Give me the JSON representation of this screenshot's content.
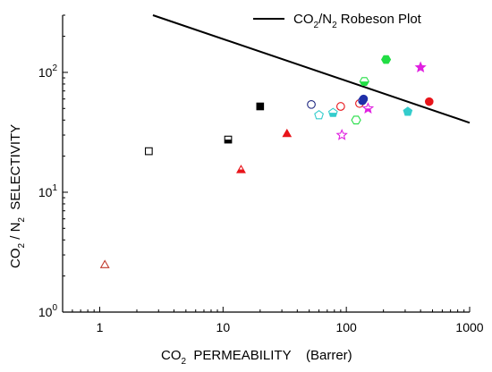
{
  "chart_data": {
    "type": "scatter",
    "title": "",
    "x_scale": "log",
    "y_scale": "log",
    "xlim": [
      0.5,
      1000
    ],
    "ylim": [
      1,
      300
    ],
    "grid": false,
    "xlabel": {
      "main": "CO",
      "sub": "2",
      "rest": "  PERMEABILITY    (Barrer)"
    },
    "ylabel": {
      "p1": "CO",
      "s1": "2",
      "p2": " / N",
      "s2": "2",
      "p3": "  SELECTIVITY"
    },
    "x_ticks": [
      {
        "value": 1,
        "label": "1"
      },
      {
        "value": 10,
        "label": "10"
      },
      {
        "value": 100,
        "label": "100"
      },
      {
        "value": 1000,
        "label": "1000"
      }
    ],
    "y_ticks": [
      {
        "value": 1,
        "base": "10",
        "exp": "0"
      },
      {
        "value": 10,
        "base": "10",
        "exp": "1"
      },
      {
        "value": 100,
        "base": "10",
        "exp": "2"
      }
    ],
    "legend": {
      "position": "top-right",
      "entry": {
        "t1": "CO",
        "s1": "2",
        "t2": "/N",
        "s2": "2",
        "t3": " Robeson Plot"
      }
    },
    "upper_bound": {
      "x": [
        2.7,
        1000
      ],
      "y": [
        300,
        38
      ]
    },
    "colors": {
      "black": "#000000",
      "red": "#e8141a",
      "darkred": "#c0392b",
      "cyan": "#33cccc",
      "green": "#22dd44",
      "blue": "#1f2fa8",
      "magenta": "#e020e0",
      "navy": "#1a237e"
    },
    "points": [
      {
        "x": 1.1,
        "y": 2.5,
        "marker": "triangle-open",
        "color": "darkred"
      },
      {
        "x": 2.5,
        "y": 22,
        "marker": "square-open",
        "color": "black"
      },
      {
        "x": 11,
        "y": 27.5,
        "marker": "square-half",
        "color": "black"
      },
      {
        "x": 20,
        "y": 52,
        "marker": "square",
        "color": "black"
      },
      {
        "x": 14,
        "y": 15.5,
        "marker": "triangle-half",
        "color": "red"
      },
      {
        "x": 33,
        "y": 31,
        "marker": "triangle",
        "color": "red"
      },
      {
        "x": 52,
        "y": 54,
        "marker": "circle-open",
        "color": "navy"
      },
      {
        "x": 60,
        "y": 44,
        "marker": "pentagon-open",
        "color": "cyan"
      },
      {
        "x": 78,
        "y": 46,
        "marker": "pentagon-half",
        "color": "cyan"
      },
      {
        "x": 90,
        "y": 52,
        "marker": "circle-open",
        "color": "red"
      },
      {
        "x": 92,
        "y": 30,
        "marker": "star-open",
        "color": "magenta"
      },
      {
        "x": 120,
        "y": 40,
        "marker": "hexagon-open",
        "color": "green"
      },
      {
        "x": 128,
        "y": 55,
        "marker": "circle-open",
        "color": "red"
      },
      {
        "x": 135,
        "y": 58,
        "marker": "circle-half",
        "color": "blue"
      },
      {
        "x": 138,
        "y": 60,
        "marker": "circle",
        "color": "blue"
      },
      {
        "x": 140,
        "y": 84,
        "marker": "hexagon-half",
        "color": "green"
      },
      {
        "x": 150,
        "y": 50,
        "marker": "star-half",
        "color": "magenta"
      },
      {
        "x": 210,
        "y": 128,
        "marker": "hexagon",
        "color": "green"
      },
      {
        "x": 315,
        "y": 47,
        "marker": "pentagon",
        "color": "cyan"
      },
      {
        "x": 400,
        "y": 110,
        "marker": "star",
        "color": "magenta"
      },
      {
        "x": 470,
        "y": 57,
        "marker": "circle",
        "color": "red"
      }
    ]
  }
}
